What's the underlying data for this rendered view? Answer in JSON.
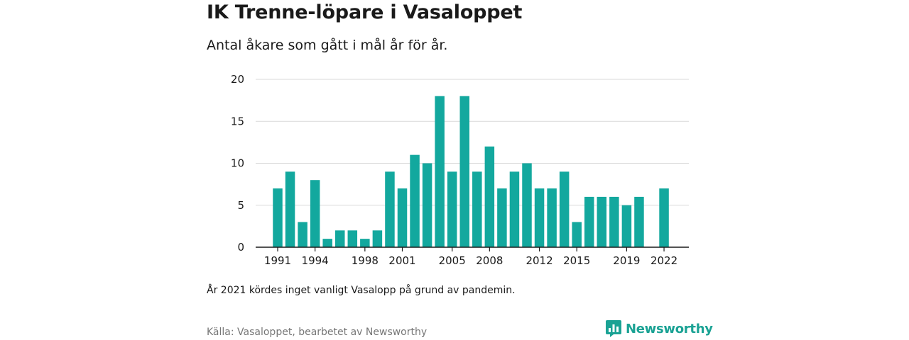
{
  "title": "IK Trenne-löpare i Vasaloppet",
  "subtitle": "Antal åkare som gått i mål år för år.",
  "note": "År 2021 kördes inget vanligt Vasalopp på grund av pandemin.",
  "source": "Källa: Vasaloppet, bearbetet av Newsworthy",
  "brand": {
    "name": "Newsworthy",
    "icon": "newsworthy-logo-icon"
  },
  "colors": {
    "bar": "#13a89e",
    "grid": "#d9d9d9",
    "axis": "#1a1a1a",
    "brand": "#1aa294"
  },
  "chart_data": {
    "type": "bar",
    "categories": [
      1991,
      1992,
      1993,
      1994,
      1995,
      1996,
      1997,
      1998,
      1999,
      2000,
      2001,
      2002,
      2003,
      2004,
      2005,
      2006,
      2007,
      2008,
      2009,
      2010,
      2011,
      2012,
      2013,
      2014,
      2015,
      2016,
      2017,
      2018,
      2019,
      2020,
      2021,
      2022
    ],
    "values": [
      7,
      9,
      3,
      8,
      1,
      2,
      2,
      1,
      2,
      9,
      7,
      11,
      10,
      18,
      9,
      18,
      9,
      12,
      7,
      9,
      10,
      7,
      7,
      9,
      3,
      6,
      6,
      6,
      5,
      6,
      null,
      7
    ],
    "x_tick_labels": [
      "1991",
      "1994",
      "1998",
      "2001",
      "2005",
      "2008",
      "2012",
      "2015",
      "2019",
      "2022"
    ],
    "y_ticks": [
      0,
      5,
      10,
      15,
      20
    ],
    "ylim": [
      0,
      20
    ],
    "xlabel": "",
    "ylabel": "",
    "grid": true
  }
}
